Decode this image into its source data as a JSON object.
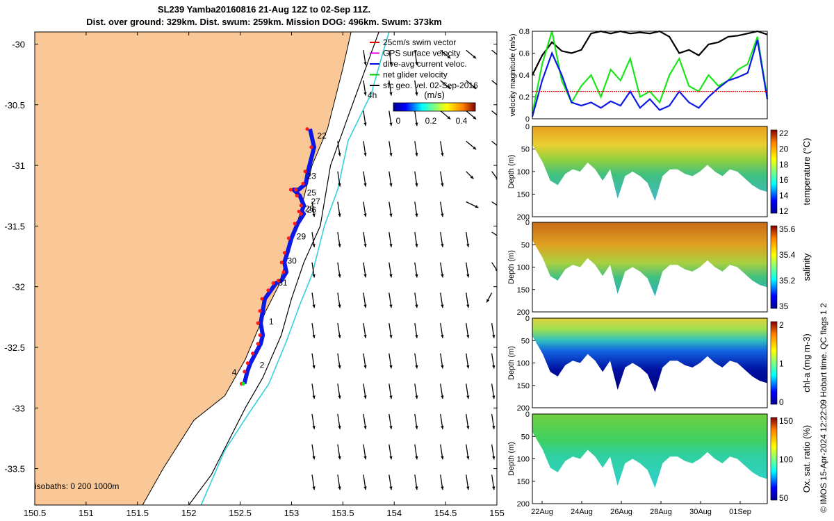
{
  "title": {
    "line1": "SL239 Yamba20160816 21-Aug 12Z to 02-Sep 11Z.",
    "line2": "Dist. over ground: 329km. Dist. swum: 259km. Mission DOG: 496km. Swum: 373km"
  },
  "credit": "© IMOS 15-Apr-2024 12:22:09 Hobart time. QC flags 1  2",
  "colors": {
    "land": "#f9c896",
    "track_swim": "#ff1a1a",
    "track_current": "#0b18e6",
    "net_velocity": "#19e619",
    "isobath_200": "#000000",
    "isobath_1000": "#34d1d8"
  },
  "map": {
    "legend": [
      {
        "label": "25cm/s swim vector",
        "color": "#e60000"
      },
      {
        "label": "GPS surface velocity",
        "color": "#e600e6"
      },
      {
        "label": "dive-avg current veloc.",
        "color": "#0000e6"
      },
      {
        "label": "net glider velocity",
        "color": "#00cc00"
      },
      {
        "label": "sfc geo. vel. 02-Sep-2016",
        "color": "#000000"
      }
    ],
    "colorbar": {
      "label": "(m/s)",
      "ticks": [
        "0",
        "0.2",
        "0.4"
      ]
    },
    "extra_label": "4h",
    "isobath_note": "isobaths: 0   200 1000m",
    "day_labels": [
      {
        "text": "22",
        "lon": 153.25,
        "lat": -30.78
      },
      {
        "text": "23",
        "lon": 153.15,
        "lat": -31.11
      },
      {
        "text": "25",
        "lon": 153.15,
        "lat": -31.25
      },
      {
        "text": "27",
        "lon": 153.19,
        "lat": -31.32
      },
      {
        "text": "26",
        "lon": 153.15,
        "lat": -31.39
      },
      {
        "text": "28",
        "lon": 153.13,
        "lat": -31.38
      },
      {
        "text": "29",
        "lon": 153.05,
        "lat": -31.61
      },
      {
        "text": "30",
        "lon": 152.96,
        "lat": -31.81
      },
      {
        "text": "31",
        "lon": 152.87,
        "lat": -31.99
      },
      {
        "text": "1",
        "lon": 152.78,
        "lat": -32.31
      },
      {
        "text": "2",
        "lon": 152.69,
        "lat": -32.67
      },
      {
        "text": "4",
        "lon": 152.42,
        "lat": -32.73
      }
    ]
  },
  "chart_data": [
    {
      "type": "scatter",
      "title": "",
      "xlabel": "",
      "ylabel": "",
      "xlim": [
        150.5,
        155
      ],
      "ylim": [
        -33.8,
        -29.9
      ],
      "x_ticks": [
        "150.5",
        "151",
        "151.5",
        "152",
        "152.5",
        "153",
        "153.5",
        "154",
        "154.5",
        "155"
      ],
      "y_ticks": [
        "-30",
        "-30.5",
        "-31",
        "-31.5",
        "-32",
        "-32.5",
        "-33",
        "-33.5"
      ],
      "coastline": {
        "lon": [
          153.58,
          153.5,
          153.35,
          153.2,
          153.05,
          152.98,
          152.87,
          152.75,
          152.55,
          152.35,
          152.05,
          151.9,
          151.75,
          151.55
        ],
        "lat": [
          -29.9,
          -30.2,
          -30.7,
          -31.0,
          -31.5,
          -31.7,
          -32.0,
          -32.2,
          -32.6,
          -32.9,
          -33.1,
          -33.3,
          -33.5,
          -33.8
        ]
      },
      "isobath_200m": {
        "lon": [
          153.85,
          153.7,
          153.55,
          153.38,
          153.28,
          153.12,
          153.0,
          152.9,
          152.72,
          152.55,
          152.4,
          152.22,
          152.0
        ],
        "lat": [
          -29.9,
          -30.25,
          -30.6,
          -31.0,
          -31.5,
          -31.8,
          -32.1,
          -32.4,
          -32.75,
          -33.0,
          -33.25,
          -33.55,
          -33.8
        ]
      },
      "isobath_1000m": {
        "lon": [
          153.95,
          153.88,
          153.78,
          153.55,
          153.45,
          153.32,
          153.2,
          153.08,
          152.95,
          152.78,
          152.58,
          152.35,
          152.12
        ],
        "lat": [
          -29.9,
          -30.1,
          -30.4,
          -30.8,
          -31.2,
          -31.5,
          -31.9,
          -32.15,
          -32.45,
          -32.8,
          -33.05,
          -33.35,
          -33.8
        ]
      },
      "glider_track": {
        "lon": [
          153.18,
          153.22,
          153.16,
          153.14,
          153.07,
          153.02,
          153.08,
          153.12,
          153.1,
          153.12,
          153.06,
          153.0,
          152.96,
          152.93,
          152.95,
          152.9,
          152.85,
          152.8,
          152.74,
          152.72,
          152.7,
          152.72,
          152.7,
          152.65,
          152.6,
          152.57,
          152.54
        ],
        "lat": [
          -30.7,
          -30.85,
          -31.05,
          -31.15,
          -31.2,
          -31.2,
          -31.25,
          -31.33,
          -31.38,
          -31.4,
          -31.48,
          -31.6,
          -31.72,
          -31.8,
          -31.88,
          -31.95,
          -31.97,
          -32.03,
          -32.1,
          -32.2,
          -32.3,
          -32.4,
          -32.47,
          -32.55,
          -32.63,
          -32.7,
          -32.8
        ]
      },
      "current_vectors_grid": {
        "lon_start": 153.3,
        "lon_step": 0.25,
        "lat_start": -30.1,
        "lat_step": -0.25,
        "note": "surface geostrophic velocity arrows, southward near shelf, eddy offshore"
      }
    },
    {
      "type": "line",
      "title": "",
      "xlabel": "",
      "ylabel": "velocity magnitude (m/s)",
      "xlim": [
        0,
        12
      ],
      "ylim": [
        0,
        0.8
      ],
      "y_ticks": [
        "0",
        "0.2",
        "0.4",
        "0.6",
        "0.8"
      ],
      "series": [
        {
          "name": "",
          "color": "#000000",
          "x": [
            0,
            0.5,
            1,
            1.5,
            2,
            2.5,
            3,
            3.5,
            4,
            4.5,
            5,
            5.5,
            6,
            6.5,
            7,
            7.5,
            8,
            8.5,
            9,
            9.5,
            10,
            10.5,
            11,
            11.5,
            12
          ],
          "values": [
            0.4,
            0.58,
            0.7,
            0.62,
            0.6,
            0.63,
            0.78,
            0.8,
            0.78,
            0.8,
            0.78,
            0.79,
            0.78,
            0.8,
            0.75,
            0.6,
            0.63,
            0.58,
            0.68,
            0.7,
            0.75,
            0.76,
            0.78,
            0.8,
            0.77
          ]
        },
        {
          "name": "",
          "color": "#19e619",
          "x": [
            0,
            0.5,
            1,
            1.5,
            2,
            2.5,
            3,
            3.5,
            4,
            4.5,
            5,
            5.5,
            6,
            6.5,
            7,
            7.5,
            8,
            8.5,
            9,
            9.5,
            10,
            10.5,
            11,
            11.5,
            12
          ],
          "values": [
            0.05,
            0.5,
            0.8,
            0.35,
            0.15,
            0.3,
            0.4,
            0.2,
            0.45,
            0.35,
            0.55,
            0.2,
            0.25,
            0.15,
            0.4,
            0.55,
            0.3,
            0.25,
            0.4,
            0.3,
            0.35,
            0.45,
            0.5,
            0.75,
            0.2
          ]
        },
        {
          "name": "",
          "color": "#0b18e6",
          "x": [
            0,
            0.5,
            1,
            1.5,
            2,
            2.5,
            3,
            3.5,
            4,
            4.5,
            5,
            5.5,
            6,
            6.5,
            7,
            7.5,
            8,
            8.5,
            9,
            9.5,
            10,
            10.5,
            11,
            11.5,
            12
          ],
          "values": [
            0.02,
            0.35,
            0.6,
            0.4,
            0.15,
            0.12,
            0.15,
            0.1,
            0.16,
            0.12,
            0.25,
            0.1,
            0.18,
            0.08,
            0.12,
            0.25,
            0.15,
            0.1,
            0.2,
            0.28,
            0.35,
            0.38,
            0.42,
            0.72,
            0.18
          ]
        },
        {
          "name": "",
          "color": "#ff0000",
          "x": [
            0,
            12
          ],
          "values": [
            0.25,
            0.25
          ]
        }
      ]
    },
    {
      "type": "heatmap",
      "title": "",
      "ylabel": "Depth (m)",
      "y_ticks": [
        "0",
        "50",
        "100",
        "150",
        "200"
      ],
      "colorbar": {
        "label": "temperature (°C)",
        "ticks": [
          "12",
          "14",
          "16",
          "18",
          "20",
          "22"
        ]
      },
      "note": "glider section; warm surface layer above cooler subsurface"
    },
    {
      "type": "heatmap",
      "title": "",
      "ylabel": "Depth (m)",
      "y_ticks": [
        "0",
        "50",
        "100",
        "150",
        "200"
      ],
      "colorbar": {
        "label": "salinity",
        "ticks": [
          "35",
          "35.2",
          "35.4",
          "35.6"
        ]
      }
    },
    {
      "type": "heatmap",
      "title": "",
      "ylabel": "Depth (m)",
      "y_ticks": [
        "0",
        "50",
        "100",
        "150",
        "200"
      ],
      "colorbar": {
        "label": "chl-a (mg m-3)",
        "ticks": [
          "0",
          "1",
          "2"
        ]
      }
    },
    {
      "type": "heatmap",
      "title": "",
      "ylabel": "Depth (m)",
      "y_ticks": [
        "0",
        "50",
        "100",
        "150",
        "200"
      ],
      "x_ticks": [
        "22Aug",
        "24Aug",
        "26Aug",
        "28Aug",
        "30Aug",
        "01Sep"
      ],
      "colorbar": {
        "label": "Ox. sat. ratio (%)",
        "ticks": [
          "50",
          "100",
          "150"
        ]
      }
    }
  ]
}
